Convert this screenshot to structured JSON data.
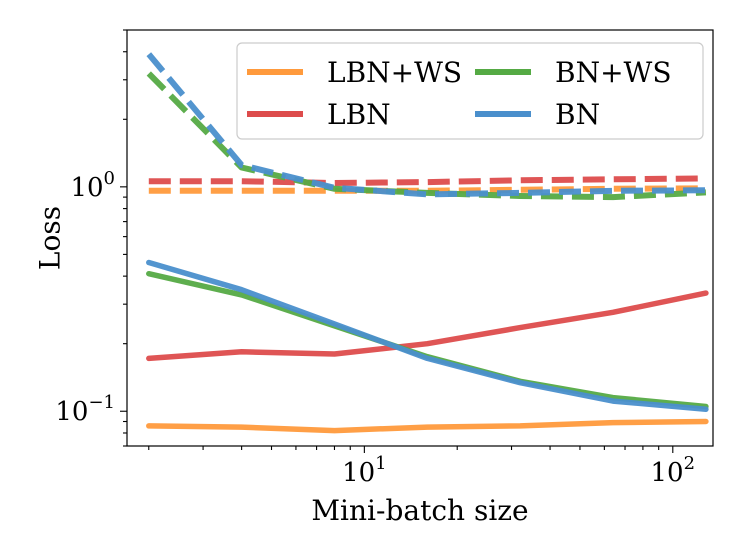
{
  "chart_data": {
    "type": "line",
    "title": "",
    "xlabel": "Mini-batch size",
    "ylabel": "Loss",
    "xscale": "log",
    "yscale": "log",
    "xlim": [
      1.7,
      135
    ],
    "ylim": [
      0.07,
      5.0
    ],
    "x": [
      2,
      4,
      8,
      16,
      32,
      64,
      128
    ],
    "x_ticks": [
      {
        "value": 10,
        "base": "10",
        "exp": "1"
      },
      {
        "value": 100,
        "base": "10",
        "exp": "2"
      }
    ],
    "y_ticks": [
      {
        "value": 1.0,
        "base": "10",
        "exp": "0"
      },
      {
        "value": 0.1,
        "base": "10",
        "exp": "−1"
      }
    ],
    "legend": {
      "placement": "top-right",
      "columns": 2
    },
    "series": [
      {
        "name": "LBN+WS",
        "color": "#ff9a3c",
        "style": "solid",
        "values": [
          0.086,
          0.085,
          0.082,
          0.085,
          0.086,
          0.089,
          0.09
        ]
      },
      {
        "name": "LBN",
        "color": "#dd4c4c",
        "style": "solid",
        "values": [
          0.172,
          0.184,
          0.18,
          0.2,
          0.236,
          0.276,
          0.336
        ]
      },
      {
        "name": "BN+WS",
        "color": "#55aa44",
        "style": "solid",
        "values": [
          0.41,
          0.33,
          0.24,
          0.175,
          0.136,
          0.115,
          0.105
        ]
      },
      {
        "name": "BN",
        "color": "#4a8fcc",
        "style": "solid",
        "values": [
          0.46,
          0.348,
          0.245,
          0.172,
          0.134,
          0.111,
          0.102
        ]
      },
      {
        "name": "LBN+WS",
        "color": "#ff9a3c",
        "style": "dashed",
        "values": [
          0.96,
          0.96,
          0.96,
          0.96,
          0.97,
          0.98,
          0.985
        ]
      },
      {
        "name": "LBN",
        "color": "#dd4c4c",
        "style": "dashed",
        "values": [
          1.06,
          1.06,
          1.04,
          1.05,
          1.07,
          1.08,
          1.09
        ]
      },
      {
        "name": "BN+WS",
        "color": "#55aa44",
        "style": "dashed",
        "values": [
          3.2,
          1.22,
          0.98,
          0.94,
          0.91,
          0.9,
          0.945
        ]
      },
      {
        "name": "BN",
        "color": "#4a8fcc",
        "style": "dashed",
        "values": [
          3.9,
          1.25,
          0.99,
          0.925,
          0.94,
          0.96,
          0.965
        ]
      }
    ],
    "legend_entries": [
      {
        "label": "LBN+WS",
        "color": "#ff9a3c"
      },
      {
        "label": "BN+WS",
        "color": "#55aa44"
      },
      {
        "label": "LBN",
        "color": "#dd4c4c"
      },
      {
        "label": "BN",
        "color": "#4a8fcc"
      }
    ]
  }
}
